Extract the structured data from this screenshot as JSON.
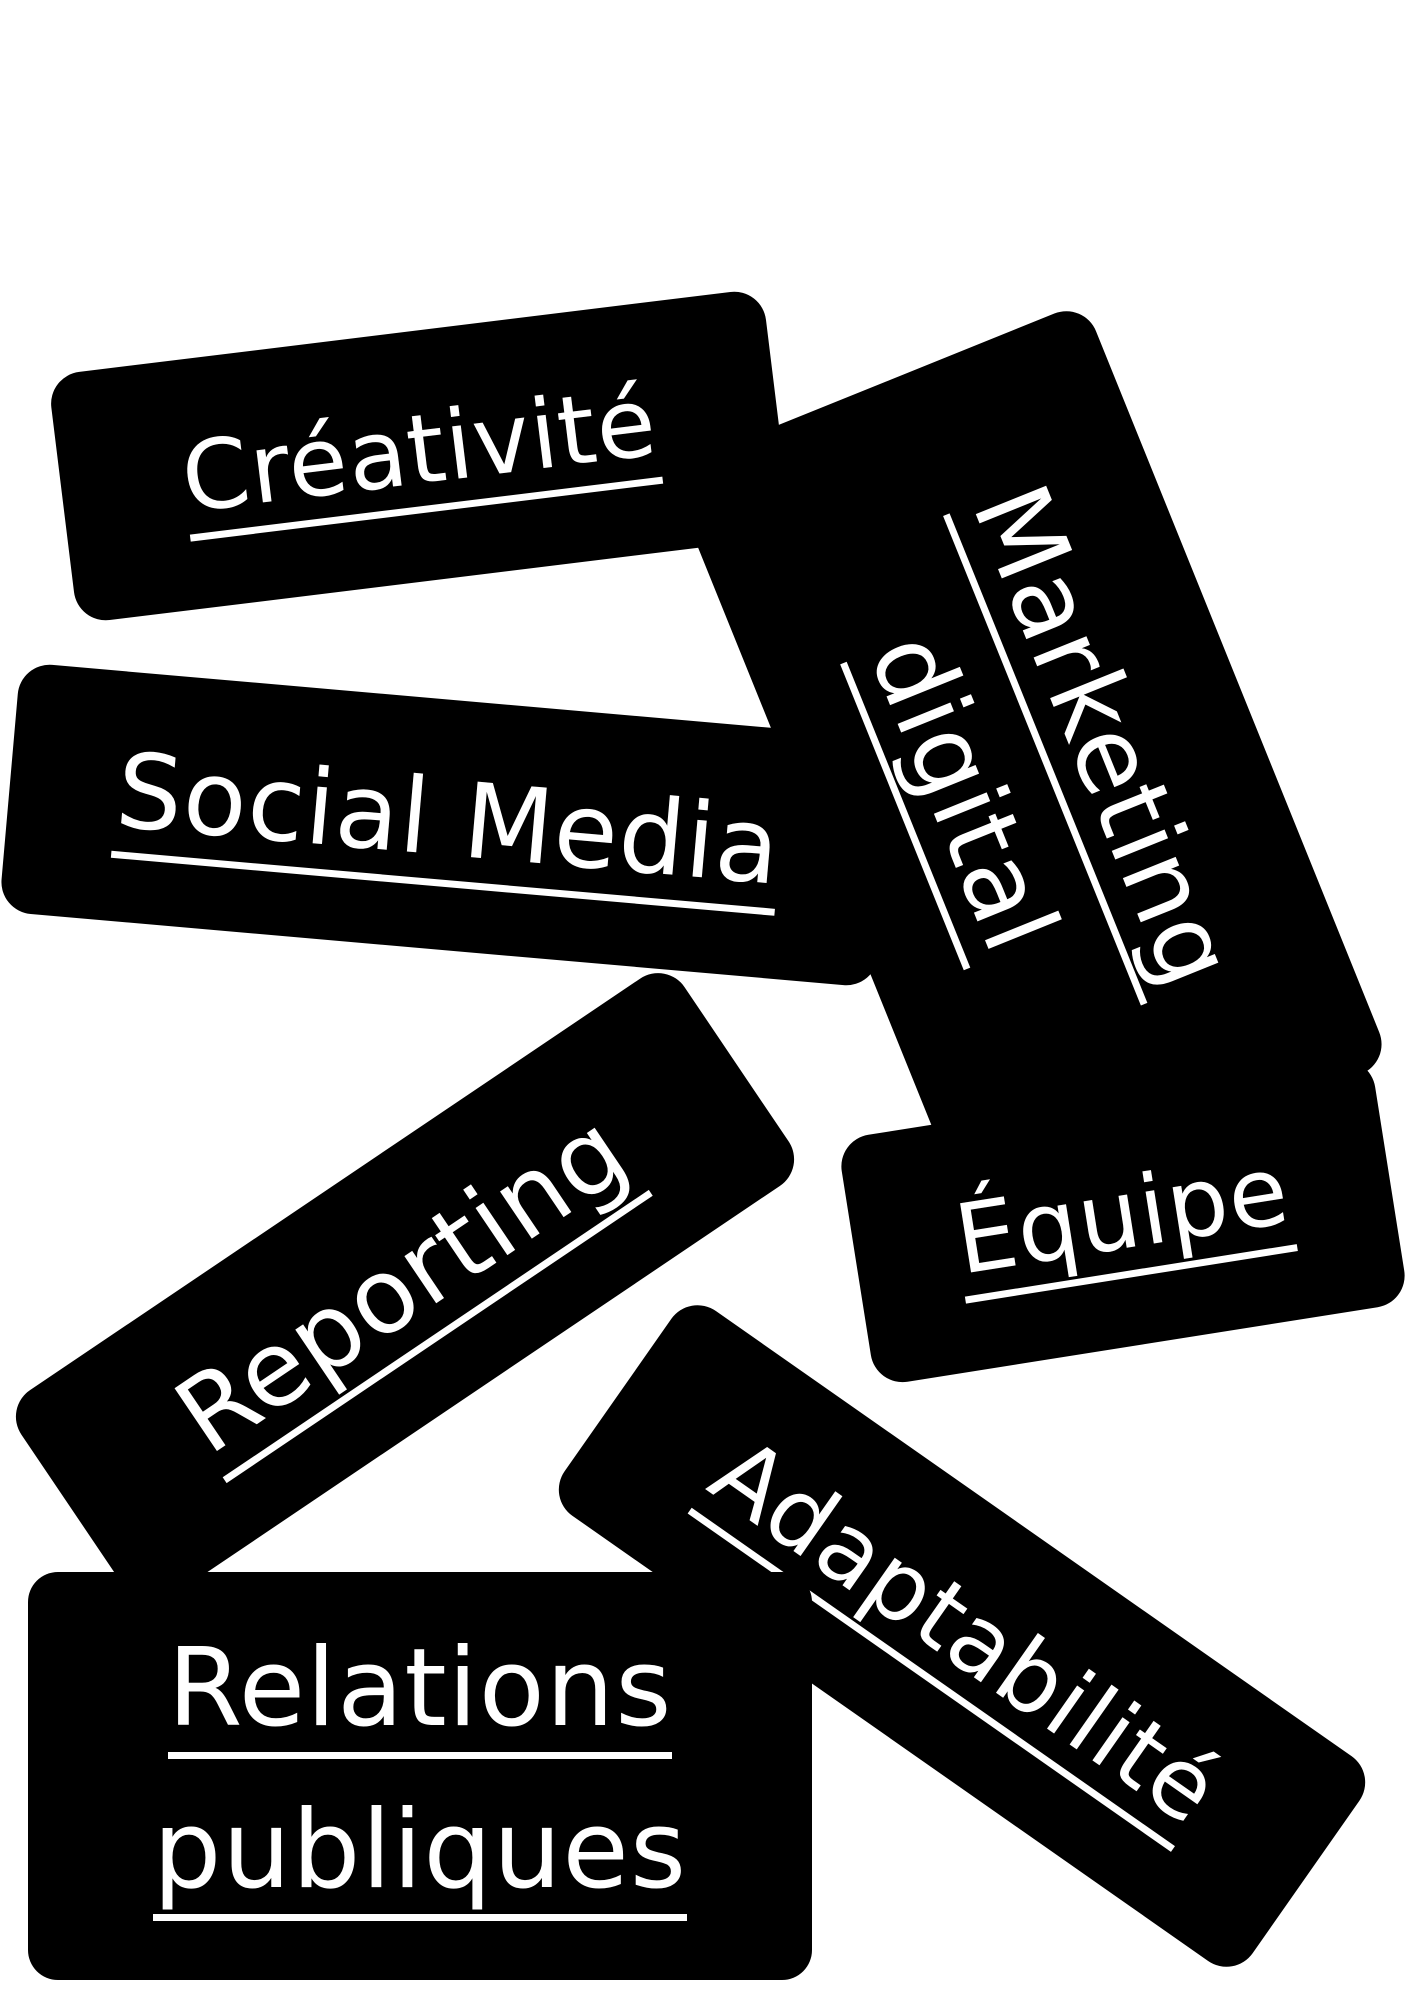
{
  "tags": {
    "creativite": "Créativité",
    "marketing_line1": "Marketing",
    "marketing_line2": "digital",
    "social_media": "Social Media",
    "reporting": "Reporting",
    "equipe": "Équipe",
    "adaptabilite": "Adaptabilité",
    "relations_line1": "Relations",
    "relations_line2": "publiques"
  },
  "colors": {
    "tag_background": "#000000",
    "tag_text": "#ffffff",
    "page_background": "#ffffff"
  }
}
